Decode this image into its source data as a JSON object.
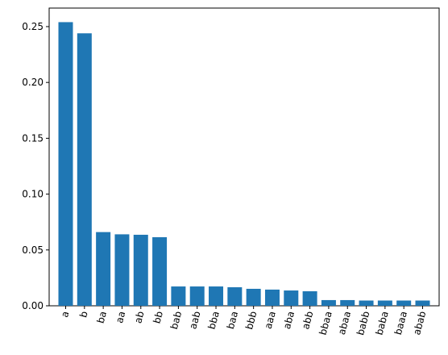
{
  "chart_data": {
    "type": "bar",
    "categories": [
      "a",
      "b",
      "ba",
      "aa",
      "ab",
      "bb",
      "bab",
      "aab",
      "bba",
      "baa",
      "bbb",
      "aaa",
      "aba",
      "abb",
      "bbaa",
      "abaa",
      "babb",
      "baba",
      "baaa",
      "abab"
    ],
    "values": [
      0.254,
      0.244,
      0.066,
      0.064,
      0.0636,
      0.0614,
      0.0173,
      0.0173,
      0.0173,
      0.0166,
      0.0152,
      0.0145,
      0.0137,
      0.013,
      0.0051,
      0.0051,
      0.0047,
      0.0047,
      0.0047,
      0.0047
    ],
    "color": "#1f77b4",
    "ylim": [
      0,
      0.2666
    ],
    "yticks": [
      {
        "value": 0,
        "label": "0.00"
      },
      {
        "value": 0.05,
        "label": "0.05"
      },
      {
        "value": 0.1,
        "label": "0.10"
      },
      {
        "value": 0.15,
        "label": "0.15"
      },
      {
        "value": 0.2,
        "label": "0.20"
      },
      {
        "value": 0.25,
        "label": "0.25"
      }
    ],
    "grid": false
  }
}
